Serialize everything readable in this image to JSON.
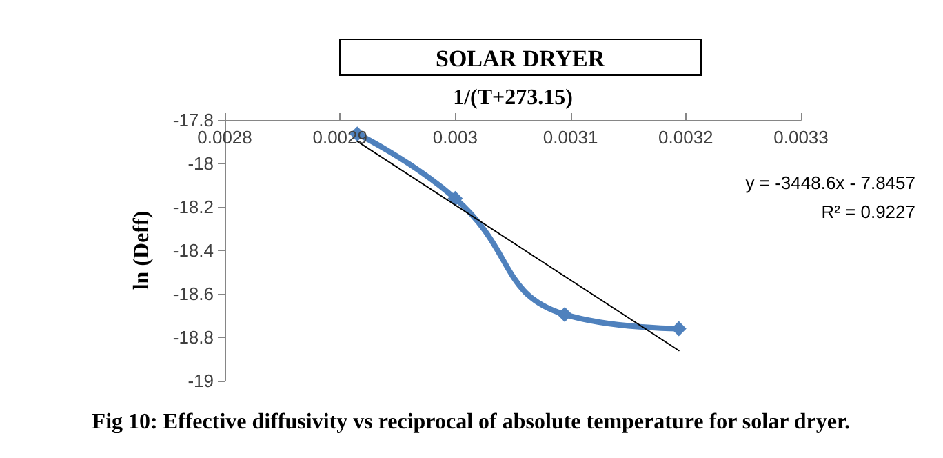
{
  "chart_data": {
    "type": "line",
    "title": "SOLAR DRYER",
    "xlabel": "1/(T+273.15)",
    "ylabel": "ln (Deff)",
    "series": [
      {
        "color": "#4f81bd",
        "x": [
          0.002915,
          0.003,
          0.003095,
          0.003194
        ],
        "values": [
          -17.864,
          -18.161,
          -18.695,
          -18.76
        ],
        "marker": "diamond"
      },
      {
        "color": "#000000",
        "x": [
          0.002915,
          0.003194
        ],
        "values": [
          -17.898,
          -18.861
        ],
        "marker": "none"
      }
    ],
    "xlim": [
      0.0028,
      0.0033
    ],
    "xticks": [
      0.0028,
      0.0029,
      0.003,
      0.0031,
      0.0032,
      0.0033
    ],
    "ylim": [
      -19,
      -17.8
    ],
    "yticks": [
      -19,
      -18.8,
      -18.6,
      -18.4,
      -18.2,
      -18,
      -17.8
    ],
    "grid": false,
    "annotations": [
      "y = -3448.6x - 7.8457",
      "R² = 0.9227",
      "Fig 10: Effective diffusivity vs reciprocal of absolute temperature for solar dryer."
    ]
  }
}
